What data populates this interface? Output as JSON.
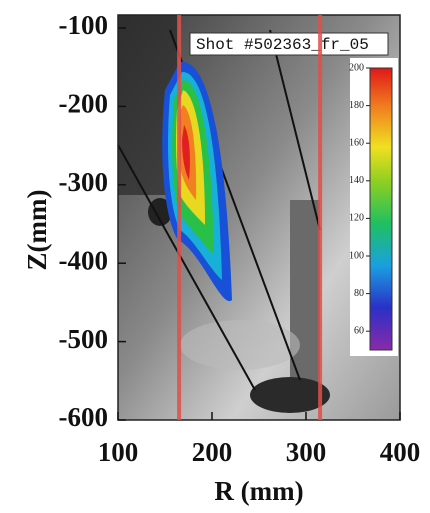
{
  "chart_data": {
    "type": "image",
    "title": "Shot #502363_fr_05",
    "xlabel": "R (mm)",
    "ylabel": "Z(mm)",
    "xlim": [
      100,
      400
    ],
    "xticks": [
      100,
      200,
      300,
      400
    ],
    "ylim": [
      -600,
      -100
    ],
    "yticks": [
      -100,
      -200,
      -300,
      -400,
      -500,
      -600
    ],
    "vlines": [
      165,
      315
    ],
    "vline_color": "#e0504a",
    "colorbar": {
      "lim": [
        50,
        200
      ],
      "ticks": [
        60,
        80,
        100,
        120,
        140,
        160,
        180,
        200
      ]
    }
  }
}
